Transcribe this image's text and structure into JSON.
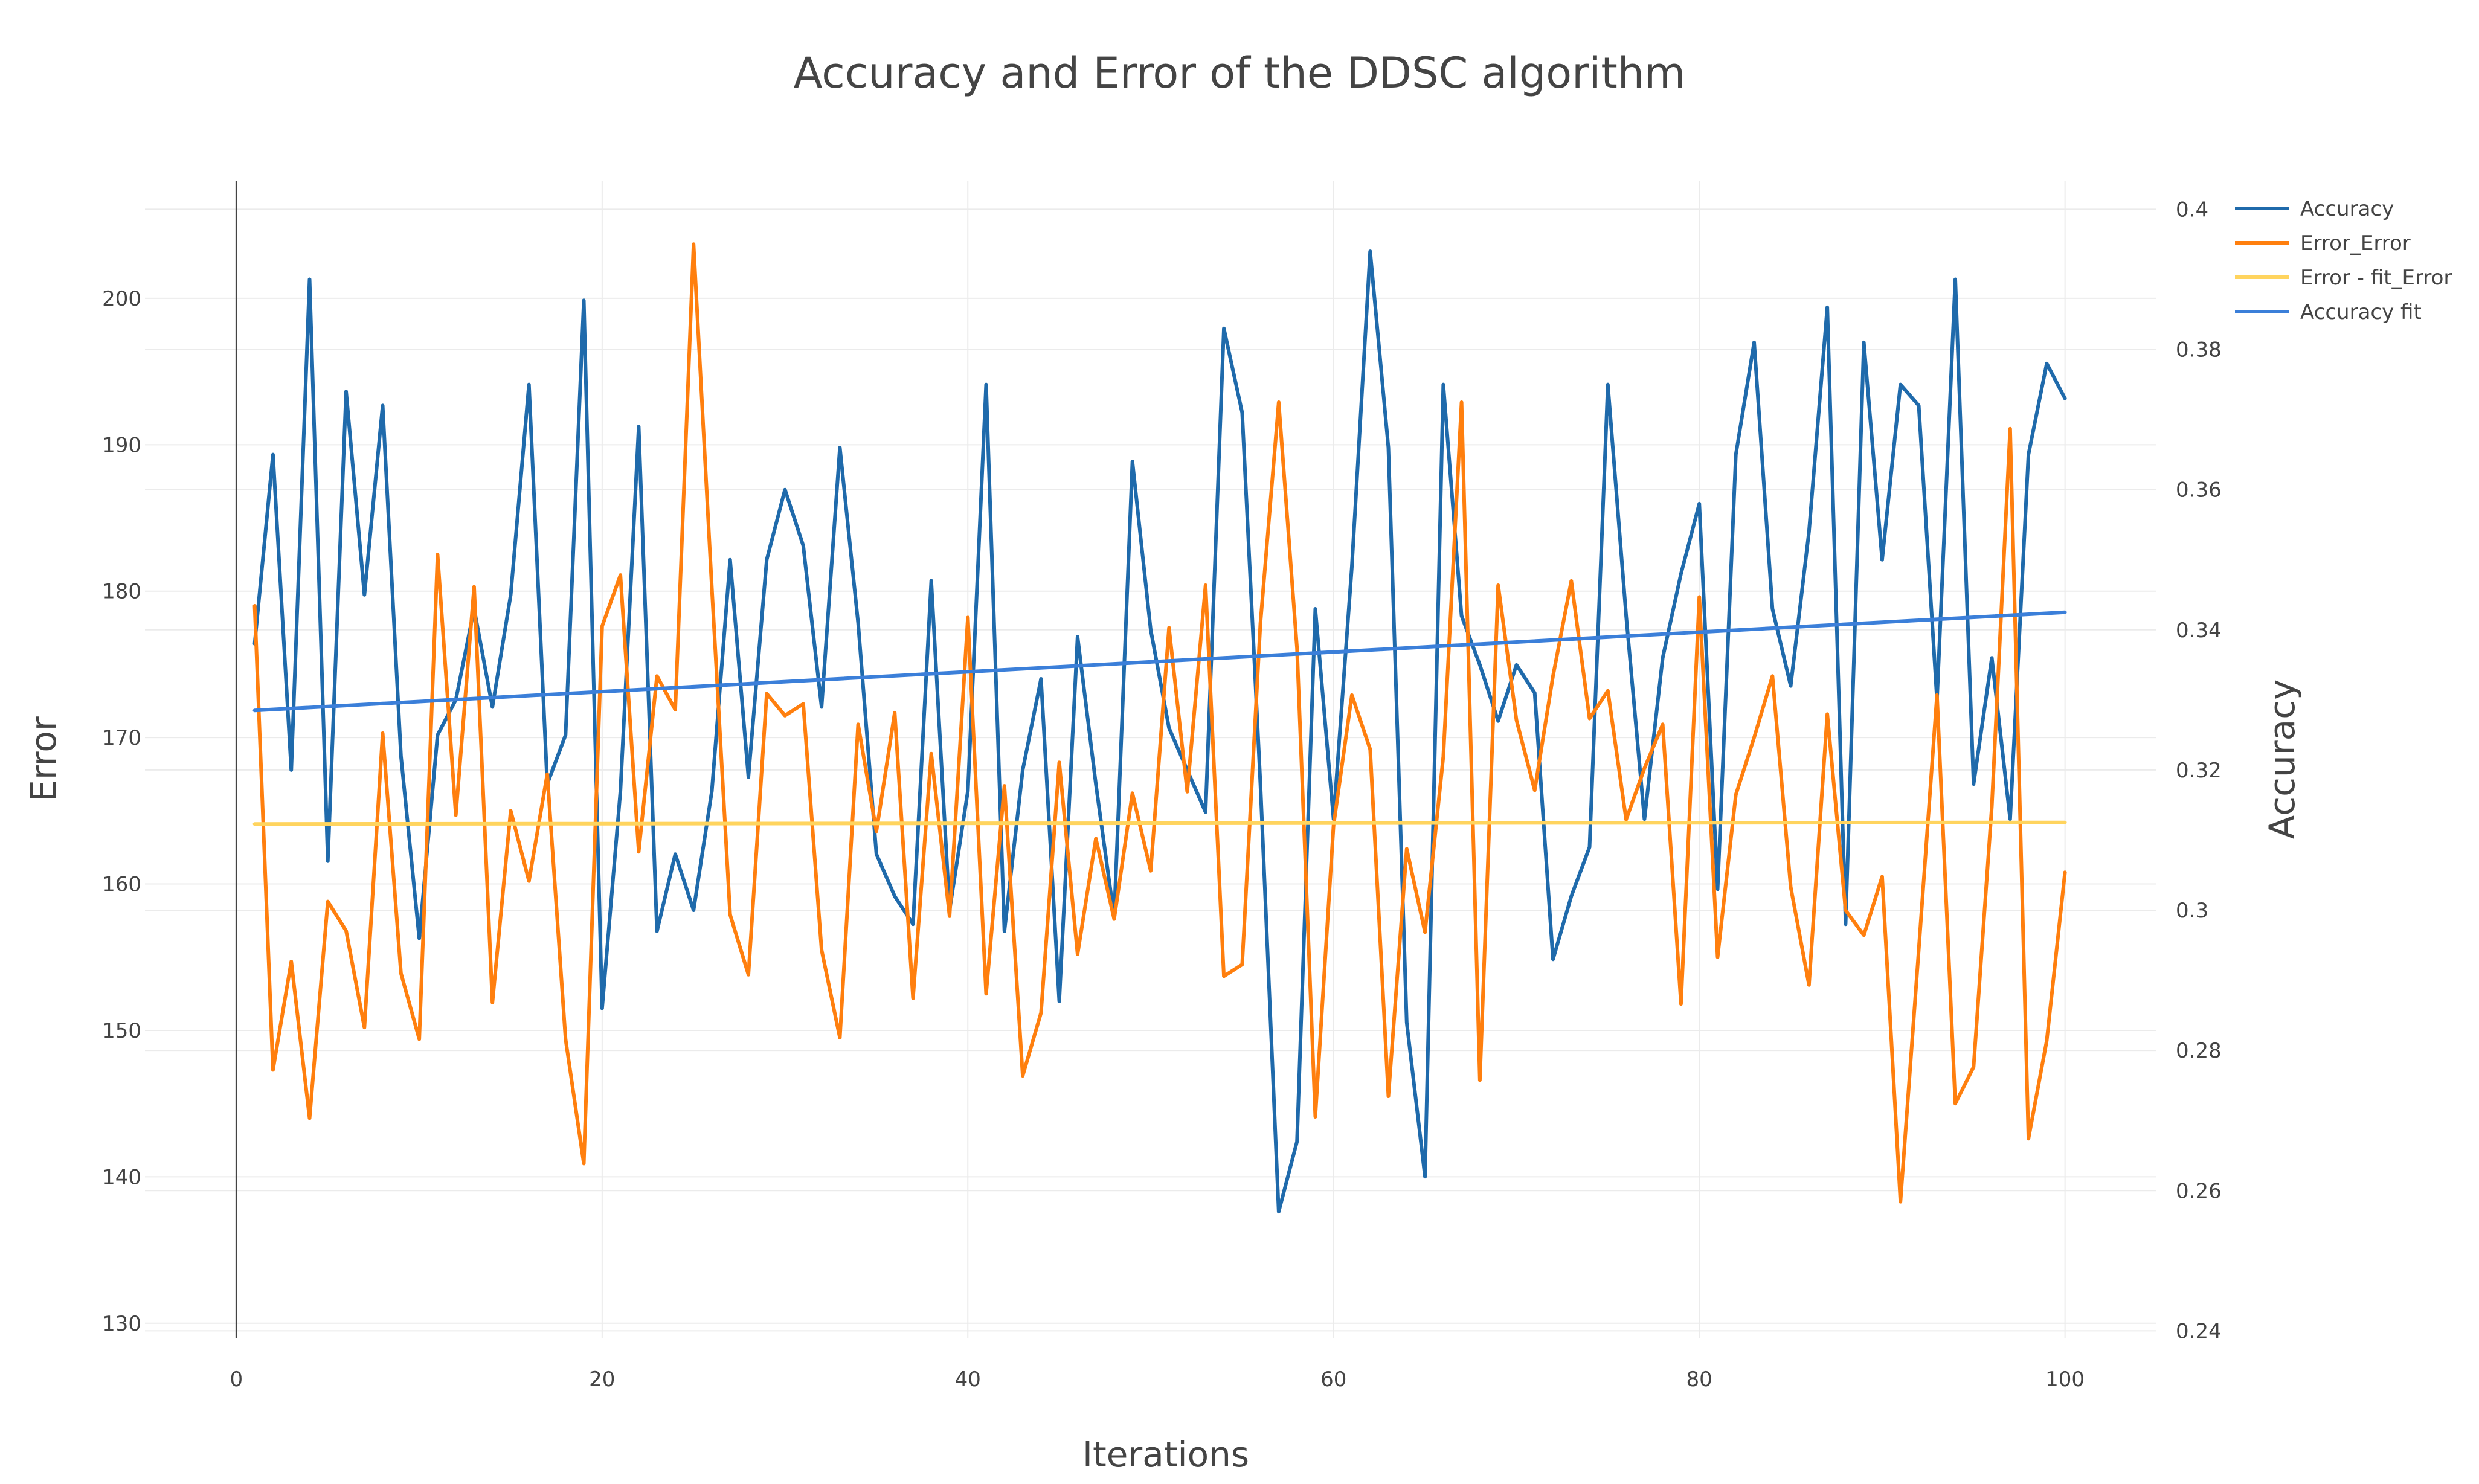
{
  "chart_data": {
    "type": "line",
    "title": "Accuracy and Error of the DDSC algorithm",
    "xlabel": "Iterations",
    "ylabel": "Error",
    "y2label": "Accuracy",
    "xlim": [
      -5,
      105
    ],
    "ylim": [
      129,
      208
    ],
    "y2lim": [
      0.239,
      0.404
    ],
    "x_ticks": [
      0,
      20,
      40,
      60,
      80,
      100
    ],
    "y_ticks": [
      130,
      140,
      150,
      160,
      170,
      180,
      190,
      200
    ],
    "y2_ticks": [
      0.24,
      0.26,
      0.28,
      0.3,
      0.32,
      0.34,
      0.36,
      0.38,
      0.4
    ],
    "y2_tick_labels": [
      "0.24",
      "0.26",
      "0.28",
      "0.3",
      "0.32",
      "0.34",
      "0.36",
      "0.38",
      "0.4"
    ],
    "grid": true,
    "legend_position": "top-right",
    "x": [
      1,
      2,
      3,
      4,
      5,
      6,
      7,
      8,
      9,
      10,
      11,
      12,
      13,
      14,
      15,
      16,
      17,
      18,
      19,
      20,
      21,
      22,
      23,
      24,
      25,
      26,
      27,
      28,
      29,
      30,
      31,
      32,
      33,
      34,
      35,
      36,
      37,
      38,
      39,
      40,
      41,
      42,
      43,
      44,
      45,
      46,
      47,
      48,
      49,
      50,
      51,
      52,
      53,
      54,
      55,
      56,
      57,
      58,
      59,
      60,
      61,
      62,
      63,
      64,
      65,
      66,
      67,
      68,
      69,
      70,
      71,
      72,
      73,
      74,
      75,
      76,
      77,
      78,
      79,
      80,
      81,
      82,
      83,
      84,
      85,
      86,
      87,
      88,
      89,
      90,
      91,
      92,
      93,
      94,
      95,
      96,
      97,
      98,
      99,
      100
    ],
    "series": [
      {
        "name": "Accuracy",
        "axis": "y2",
        "color": "#1f6aab",
        "values": [
          0.338,
          0.365,
          0.32,
          0.39,
          0.307,
          0.374,
          0.345,
          0.372,
          0.322,
          0.296,
          0.325,
          0.33,
          0.343,
          0.329,
          0.345,
          0.375,
          0.318,
          0.325,
          0.387,
          0.286,
          0.317,
          0.369,
          0.297,
          0.308,
          0.3,
          0.317,
          0.35,
          0.319,
          0.35,
          0.36,
          0.352,
          0.329,
          0.366,
          0.341,
          0.308,
          0.302,
          0.298,
          0.347,
          0.3,
          0.317,
          0.375,
          0.297,
          0.32,
          0.333,
          0.287,
          0.339,
          0.318,
          0.299,
          0.364,
          0.34,
          0.326,
          0.32,
          0.314,
          0.383,
          0.371,
          0.318,
          0.257,
          0.267,
          0.343,
          0.313,
          0.349,
          0.394,
          0.366,
          0.284,
          0.262,
          0.375,
          0.342,
          0.335,
          0.327,
          0.335,
          0.331,
          0.293,
          0.302,
          0.309,
          0.375,
          0.342,
          0.313,
          0.336,
          0.348,
          0.358,
          0.303,
          0.365,
          0.381,
          0.343,
          0.332,
          0.354,
          0.386,
          0.298,
          0.381,
          0.35,
          0.375,
          0.372,
          0.33,
          0.39,
          0.318,
          0.336,
          0.313,
          0.365,
          0.378,
          0.373
        ]
      },
      {
        "name": "Error_Error",
        "axis": "y",
        "color": "#ff7f0e",
        "values": [
          179,
          147.3,
          154.7,
          144,
          158.8,
          156.8,
          150.2,
          170.3,
          153.9,
          149.4,
          182.5,
          164.7,
          180.3,
          151.9,
          165,
          160.2,
          167.5,
          149.4,
          140.9,
          177.6,
          181.1,
          162.2,
          174.2,
          171.9,
          203.7,
          180.2,
          157.9,
          153.8,
          173,
          171.5,
          172.3,
          155.5,
          149.5,
          170.9,
          163.6,
          171.7,
          152.2,
          168.9,
          157.8,
          178.2,
          152.5,
          166.7,
          146.9,
          151.2,
          168.3,
          155.2,
          163.1,
          157.6,
          166.2,
          160.9,
          177.5,
          166.3,
          180.4,
          153.7,
          154.5,
          177.8,
          192.9,
          176.1,
          144.1,
          164,
          172.9,
          169.2,
          145.5,
          162.4,
          156.7,
          168.7,
          192.9,
          146.6,
          180.4,
          171.2,
          166.4,
          174.2,
          180.7,
          171.3,
          173.2,
          164.4,
          167.9,
          170.9,
          151.8,
          179.6,
          155,
          166.1,
          170,
          174.2,
          159.8,
          153.1,
          171.6,
          158.2,
          156.5,
          160.5,
          138.3,
          155.5,
          172.9,
          145,
          147.5,
          165.3,
          191.1,
          142.6,
          149.3,
          160.8
        ]
      },
      {
        "name": "Error - fit_Error",
        "axis": "y",
        "color": "#ffd45e",
        "fit_start": [
          1,
          164.1
        ],
        "fit_end": [
          100,
          164.2
        ]
      },
      {
        "name": "Accuracy fit",
        "axis": "y2",
        "color": "#3b7fd9",
        "fit_start": [
          1,
          0.3285
        ],
        "fit_end": [
          100,
          0.3425
        ]
      }
    ]
  }
}
